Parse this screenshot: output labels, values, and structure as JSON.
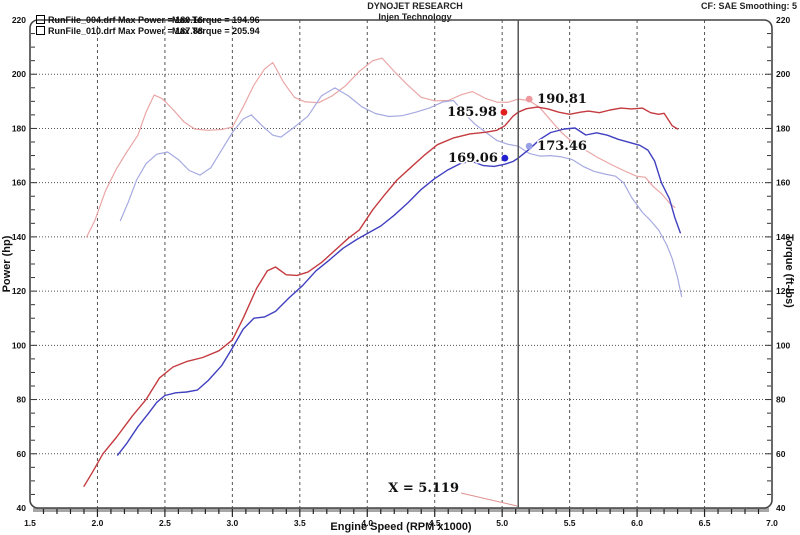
{
  "header": {
    "title": "DYNOJET RESEARCH",
    "subtitle": "Injen Technology",
    "correction": "CF: SAE  Smoothing: 5"
  },
  "legend": {
    "runs": [
      {
        "swatch_color": "#2a2acc",
        "label": "RunFile_004.drf Max Power = 180.16",
        "torque": "Max Torque = 194.96"
      },
      {
        "swatch_color": "#dd2222",
        "label": "RunFile_010.drf Max Power = 187.88",
        "torque": "Max Torque = 205.94"
      }
    ]
  },
  "chart_data": {
    "type": "line",
    "xlabel": "Engine Speed (RPM x1000)",
    "ylabel_left": "Power (hp)",
    "ylabel_right": "Torque (ft-lbs)",
    "xlim": [
      1.5,
      7.0
    ],
    "ylim": [
      40,
      220
    ],
    "x_major_ticks": [
      "1.5",
      "2.0",
      "2.5",
      "3.0",
      "3.5",
      "4.0",
      "4.5",
      "5.0",
      "5.5",
      "6.0",
      "6.5",
      "7.0"
    ],
    "x_minor_step": 0.1,
    "y_major_ticks": [
      40,
      60,
      80,
      100,
      120,
      140,
      160,
      180,
      200,
      220
    ],
    "y_minor_step": 5,
    "grid": true,
    "cursor_x": 5.119,
    "cursor_label": "X = 5.119",
    "colors": {
      "power_004": "#4040c0",
      "torque_004": "#a6aae0",
      "power_010": "#c43b40",
      "torque_010": "#eaa6a6",
      "cursor": "#555555",
      "frame": "#444444",
      "grid": "#555555"
    },
    "series": [
      {
        "name": "RunFile_010 Torque (ft-lbs)",
        "color": "#eaa6a6",
        "width": 1.2,
        "points": [
          [
            1.92,
            140
          ],
          [
            1.98,
            146
          ],
          [
            2.06,
            157
          ],
          [
            2.14,
            165
          ],
          [
            2.22,
            171.5
          ],
          [
            2.3,
            177.5
          ],
          [
            2.36,
            186
          ],
          [
            2.42,
            192.3
          ],
          [
            2.48,
            191
          ],
          [
            2.56,
            187
          ],
          [
            2.64,
            182.5
          ],
          [
            2.72,
            179.8
          ],
          [
            2.82,
            179.3
          ],
          [
            2.92,
            179.6
          ],
          [
            3.0,
            180.5
          ],
          [
            3.08,
            188
          ],
          [
            3.16,
            196
          ],
          [
            3.24,
            202
          ],
          [
            3.3,
            204.3
          ],
          [
            3.38,
            197
          ],
          [
            3.46,
            191.5
          ],
          [
            3.54,
            189.8
          ],
          [
            3.64,
            189.5
          ],
          [
            3.74,
            192
          ],
          [
            3.84,
            195.8
          ],
          [
            3.94,
            201
          ],
          [
            4.04,
            205
          ],
          [
            4.11,
            205.94
          ],
          [
            4.2,
            201
          ],
          [
            4.3,
            196
          ],
          [
            4.4,
            191.5
          ],
          [
            4.5,
            190.2
          ],
          [
            4.6,
            190.3
          ],
          [
            4.7,
            192.5
          ],
          [
            4.78,
            193.6
          ],
          [
            4.88,
            191
          ],
          [
            4.96,
            189.7
          ],
          [
            5.04,
            189.6
          ],
          [
            5.119,
            190.81
          ],
          [
            5.2,
            190.3
          ],
          [
            5.28,
            187.6
          ],
          [
            5.36,
            183
          ],
          [
            5.44,
            178.5
          ],
          [
            5.52,
            175
          ],
          [
            5.6,
            172.5
          ],
          [
            5.7,
            169.5
          ],
          [
            5.8,
            166.9
          ],
          [
            5.9,
            164.5
          ],
          [
            6.0,
            162.3
          ],
          [
            6.06,
            162
          ],
          [
            6.12,
            158.5
          ],
          [
            6.18,
            156
          ],
          [
            6.24,
            152.5
          ],
          [
            6.28,
            150.8
          ]
        ]
      },
      {
        "name": "RunFile_004 Torque (ft-lbs)",
        "color": "#a6aae0",
        "width": 1.2,
        "points": [
          [
            2.17,
            146
          ],
          [
            2.23,
            153
          ],
          [
            2.29,
            161
          ],
          [
            2.36,
            167
          ],
          [
            2.44,
            170.5
          ],
          [
            2.52,
            171.3
          ],
          [
            2.6,
            168.5
          ],
          [
            2.68,
            164.5
          ],
          [
            2.76,
            162.8
          ],
          [
            2.84,
            165.5
          ],
          [
            2.92,
            172
          ],
          [
            3.0,
            178.5
          ],
          [
            3.08,
            183.5
          ],
          [
            3.14,
            185
          ],
          [
            3.22,
            181
          ],
          [
            3.3,
            177.5
          ],
          [
            3.36,
            176.8
          ],
          [
            3.46,
            180.5
          ],
          [
            3.56,
            184.5
          ],
          [
            3.66,
            192
          ],
          [
            3.76,
            194.96
          ],
          [
            3.86,
            192
          ],
          [
            3.96,
            188
          ],
          [
            4.06,
            185.5
          ],
          [
            4.16,
            184.4
          ],
          [
            4.26,
            184.7
          ],
          [
            4.36,
            186
          ],
          [
            4.46,
            187.5
          ],
          [
            4.56,
            189.8
          ],
          [
            4.64,
            190.3
          ],
          [
            4.72,
            185.5
          ],
          [
            4.8,
            181.5
          ],
          [
            4.88,
            178.5
          ],
          [
            4.96,
            175.6
          ],
          [
            5.04,
            174.2
          ],
          [
            5.119,
            173.46
          ],
          [
            5.2,
            170.8
          ],
          [
            5.28,
            169.8
          ],
          [
            5.36,
            170
          ],
          [
            5.44,
            169.5
          ],
          [
            5.52,
            168.5
          ],
          [
            5.6,
            166
          ],
          [
            5.68,
            164.2
          ],
          [
            5.76,
            163.2
          ],
          [
            5.84,
            162.4
          ],
          [
            5.9,
            160
          ],
          [
            5.96,
            154.5
          ],
          [
            6.04,
            149
          ],
          [
            6.1,
            146
          ],
          [
            6.16,
            142.5
          ],
          [
            6.22,
            137
          ],
          [
            6.26,
            132
          ],
          [
            6.3,
            125
          ],
          [
            6.33,
            118
          ]
        ]
      },
      {
        "name": "RunFile_010 Power (hp)",
        "color": "#c43b40",
        "width": 1.4,
        "points": [
          [
            1.9,
            48
          ],
          [
            1.96,
            53
          ],
          [
            2.04,
            60
          ],
          [
            2.14,
            66
          ],
          [
            2.26,
            74
          ],
          [
            2.36,
            80
          ],
          [
            2.46,
            88
          ],
          [
            2.56,
            92
          ],
          [
            2.66,
            94
          ],
          [
            2.78,
            95.5
          ],
          [
            2.9,
            98
          ],
          [
            3.0,
            102
          ],
          [
            3.08,
            110
          ],
          [
            3.18,
            121
          ],
          [
            3.26,
            127.5
          ],
          [
            3.32,
            128.9
          ],
          [
            3.4,
            126
          ],
          [
            3.48,
            125.8
          ],
          [
            3.56,
            127
          ],
          [
            3.66,
            130.5
          ],
          [
            3.76,
            135
          ],
          [
            3.86,
            139.5
          ],
          [
            3.94,
            142.5
          ],
          [
            4.04,
            150
          ],
          [
            4.12,
            155
          ],
          [
            4.22,
            161
          ],
          [
            4.32,
            165.5
          ],
          [
            4.42,
            170
          ],
          [
            4.52,
            174
          ],
          [
            4.64,
            176.5
          ],
          [
            4.76,
            178
          ],
          [
            4.88,
            178.6
          ],
          [
            4.96,
            179.3
          ],
          [
            5.02,
            181
          ],
          [
            5.08,
            184.5
          ],
          [
            5.119,
            185.98
          ],
          [
            5.18,
            187.3
          ],
          [
            5.26,
            187.88
          ],
          [
            5.34,
            187.2
          ],
          [
            5.42,
            186
          ],
          [
            5.5,
            185.2
          ],
          [
            5.58,
            186
          ],
          [
            5.64,
            186.4
          ],
          [
            5.72,
            185.8
          ],
          [
            5.8,
            186.8
          ],
          [
            5.88,
            187.5
          ],
          [
            5.96,
            187.2
          ],
          [
            6.04,
            187.5
          ],
          [
            6.1,
            185.8
          ],
          [
            6.16,
            185.2
          ],
          [
            6.2,
            185.6
          ],
          [
            6.26,
            181
          ],
          [
            6.3,
            179.8
          ]
        ]
      },
      {
        "name": "RunFile_004 Power (hp)",
        "color": "#4040c0",
        "width": 1.4,
        "points": [
          [
            2.15,
            59.5
          ],
          [
            2.22,
            64
          ],
          [
            2.3,
            70
          ],
          [
            2.38,
            75
          ],
          [
            2.44,
            79
          ],
          [
            2.5,
            81.5
          ],
          [
            2.58,
            82.5
          ],
          [
            2.66,
            82.8
          ],
          [
            2.74,
            83.5
          ],
          [
            2.82,
            87
          ],
          [
            2.92,
            92.5
          ],
          [
            3.0,
            99
          ],
          [
            3.08,
            106
          ],
          [
            3.16,
            110
          ],
          [
            3.24,
            110.5
          ],
          [
            3.32,
            112.5
          ],
          [
            3.42,
            117.5
          ],
          [
            3.52,
            122
          ],
          [
            3.62,
            127.5
          ],
          [
            3.72,
            131.5
          ],
          [
            3.82,
            135.8
          ],
          [
            3.92,
            139
          ],
          [
            4.02,
            141.8
          ],
          [
            4.1,
            144
          ],
          [
            4.2,
            148
          ],
          [
            4.3,
            152.5
          ],
          [
            4.4,
            157.5
          ],
          [
            4.5,
            161.5
          ],
          [
            4.6,
            164.8
          ],
          [
            4.7,
            167.3
          ],
          [
            4.78,
            167.8
          ],
          [
            4.86,
            166.3
          ],
          [
            4.94,
            166
          ],
          [
            5.02,
            166.8
          ],
          [
            5.08,
            167.8
          ],
          [
            5.119,
            169.06
          ],
          [
            5.2,
            172.3
          ],
          [
            5.28,
            176
          ],
          [
            5.36,
            178.5
          ],
          [
            5.46,
            179.8
          ],
          [
            5.54,
            180.16
          ],
          [
            5.62,
            177.6
          ],
          [
            5.7,
            178.4
          ],
          [
            5.78,
            177.5
          ],
          [
            5.86,
            176
          ],
          [
            5.94,
            174.9
          ],
          [
            6.02,
            173.8
          ],
          [
            6.08,
            172
          ],
          [
            6.13,
            168
          ],
          [
            6.18,
            160
          ],
          [
            6.24,
            154
          ],
          [
            6.28,
            147
          ],
          [
            6.32,
            141.5
          ]
        ]
      },
      {
        "name": "cursor-values",
        "color": "",
        "width": 0,
        "points": []
      }
    ],
    "markers": [
      {
        "label": "185.98",
        "x": 5.013,
        "y": 185.98,
        "dot_color": "#e02020",
        "side": "left"
      },
      {
        "label": "190.81",
        "x": 5.2,
        "y": 190.81,
        "dot_color": "#f0989e",
        "side": "right"
      },
      {
        "label": "169.06",
        "x": 5.02,
        "y": 169.06,
        "dot_color": "#2020d0",
        "side": "left"
      },
      {
        "label": "173.46",
        "x": 5.2,
        "y": 173.46,
        "dot_color": "#98a0e8",
        "side": "right"
      }
    ]
  }
}
